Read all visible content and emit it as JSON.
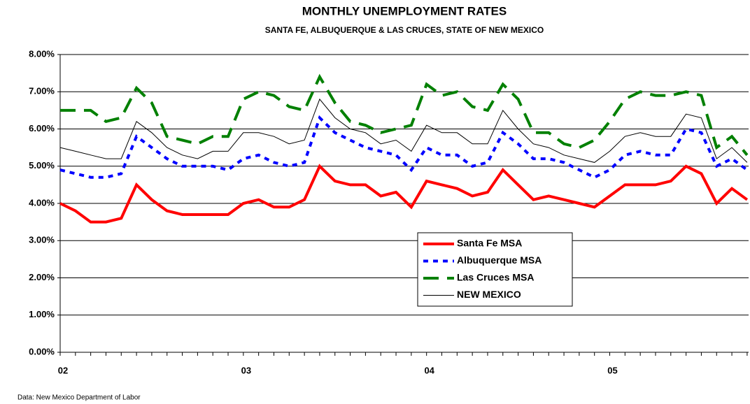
{
  "chart_data": {
    "type": "line",
    "title": "MONTHLY UNEMPLOYMENT RATES",
    "subtitle": "SANTA FE, ALBUQUERQUE & LAS CRUCES, STATE OF NEW MEXICO",
    "source": "Data:  New Mexico Department of Labor",
    "categories": [
      "02",
      null,
      null,
      null,
      null,
      null,
      null,
      null,
      null,
      null,
      null,
      null,
      "03",
      null,
      null,
      null,
      null,
      null,
      null,
      null,
      null,
      null,
      null,
      null,
      "04",
      null,
      null,
      null,
      null,
      null,
      null,
      null,
      null,
      null,
      null,
      null,
      "05",
      null,
      null,
      null,
      null,
      null,
      null,
      null,
      null,
      null
    ],
    "ylim": [
      0,
      8
    ],
    "yticks": [
      {
        "value": 0,
        "label": "0.00%"
      },
      {
        "value": 1,
        "label": "1.00%"
      },
      {
        "value": 2,
        "label": "2.00%"
      },
      {
        "value": 3,
        "label": "3.00%"
      },
      {
        "value": 4,
        "label": "4.00%"
      },
      {
        "value": 5,
        "label": "5.00%"
      },
      {
        "value": 6,
        "label": "6.00%"
      },
      {
        "value": 7,
        "label": "7.00%"
      },
      {
        "value": 8,
        "label": "8.00%"
      }
    ],
    "grid": true,
    "series": [
      {
        "name": "Santa Fe MSA",
        "color": "#ff0000",
        "style": "solid",
        "width": 4,
        "values": [
          4.0,
          3.8,
          3.5,
          3.5,
          3.6,
          4.5,
          4.1,
          3.8,
          3.7,
          3.7,
          3.7,
          3.7,
          4.0,
          4.1,
          3.9,
          3.9,
          4.1,
          5.0,
          4.6,
          4.5,
          4.5,
          4.2,
          4.3,
          3.9,
          4.6,
          4.5,
          4.4,
          4.2,
          4.3,
          4.9,
          4.5,
          4.1,
          4.2,
          4.1,
          4.0,
          3.9,
          4.2,
          4.5,
          4.5,
          4.5,
          4.6,
          5.0,
          4.8,
          4.0,
          4.4,
          4.1
        ]
      },
      {
        "name": "Albuquerque MSA",
        "color": "#0000ff",
        "style": "dotted",
        "width": 4,
        "values": [
          4.9,
          4.8,
          4.7,
          4.7,
          4.8,
          5.8,
          5.5,
          5.2,
          5.0,
          5.0,
          5.0,
          4.9,
          5.2,
          5.3,
          5.1,
          5.0,
          5.1,
          6.3,
          5.9,
          5.7,
          5.5,
          5.4,
          5.3,
          4.9,
          5.5,
          5.3,
          5.3,
          5.0,
          5.1,
          5.9,
          5.6,
          5.2,
          5.2,
          5.1,
          4.9,
          4.7,
          4.9,
          5.3,
          5.4,
          5.3,
          5.3,
          6.0,
          5.9,
          5.0,
          5.2,
          4.9
        ]
      },
      {
        "name": "Las Cruces MSA",
        "color": "#008000",
        "style": "dashed",
        "width": 4,
        "values": [
          6.5,
          6.5,
          6.5,
          6.2,
          6.3,
          7.1,
          6.7,
          5.8,
          5.7,
          5.6,
          5.8,
          5.8,
          6.8,
          7.0,
          6.9,
          6.6,
          6.5,
          7.4,
          6.7,
          6.2,
          6.1,
          5.9,
          6.0,
          6.1,
          7.2,
          6.9,
          7.0,
          6.6,
          6.5,
          7.2,
          6.8,
          5.9,
          5.9,
          5.6,
          5.5,
          5.7,
          6.2,
          6.8,
          7.0,
          6.9,
          6.9,
          7.0,
          6.9,
          5.5,
          5.8,
          5.3
        ]
      },
      {
        "name": "NEW MEXICO",
        "color": "#000000",
        "style": "solid",
        "width": 1,
        "values": [
          5.5,
          5.4,
          5.3,
          5.2,
          5.2,
          6.2,
          5.9,
          5.5,
          5.3,
          5.2,
          5.4,
          5.4,
          5.9,
          5.9,
          5.8,
          5.6,
          5.7,
          6.8,
          6.3,
          6.0,
          5.9,
          5.6,
          5.7,
          5.4,
          6.1,
          5.9,
          5.9,
          5.6,
          5.6,
          6.5,
          6.0,
          5.6,
          5.5,
          5.3,
          5.2,
          5.1,
          5.4,
          5.8,
          5.9,
          5.8,
          5.8,
          6.4,
          6.3,
          5.2,
          5.5,
          5.1
        ]
      }
    ]
  }
}
